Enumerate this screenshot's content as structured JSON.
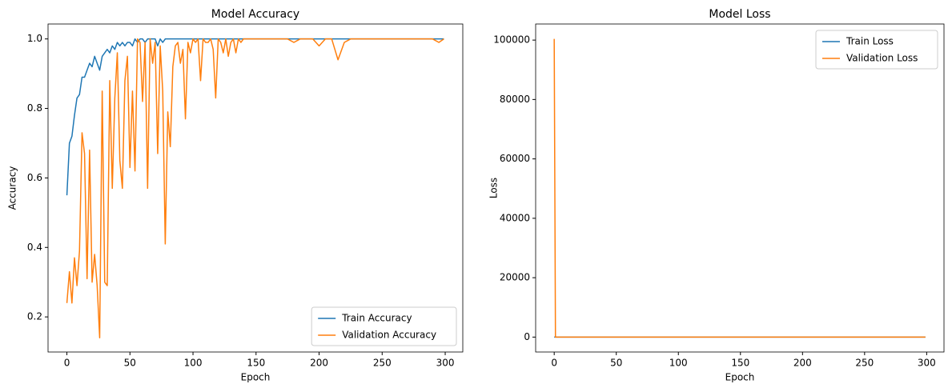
{
  "chart_data": [
    {
      "type": "line",
      "title": "Model Accuracy",
      "x_label": "Epoch",
      "y_label": "Accuracy",
      "x": [
        0,
        2,
        4,
        6,
        8,
        10,
        12,
        14,
        16,
        18,
        20,
        22,
        24,
        26,
        28,
        30,
        32,
        34,
        36,
        38,
        40,
        42,
        44,
        46,
        48,
        50,
        52,
        54,
        56,
        58,
        60,
        62,
        64,
        66,
        68,
        70,
        72,
        74,
        76,
        78,
        80,
        82,
        84,
        86,
        88,
        90,
        92,
        94,
        96,
        98,
        100,
        102,
        104,
        106,
        108,
        110,
        112,
        114,
        116,
        118,
        120,
        122,
        124,
        126,
        128,
        130,
        132,
        134,
        136,
        138,
        140,
        142,
        144,
        146,
        148,
        150,
        155,
        160,
        165,
        170,
        175,
        180,
        185,
        190,
        195,
        200,
        205,
        210,
        215,
        220,
        225,
        230,
        235,
        240,
        245,
        250,
        255,
        260,
        265,
        270,
        275,
        280,
        285,
        290,
        295,
        299
      ],
      "series": [
        {
          "name": "Train Accuracy",
          "color": "#1f77b4",
          "values": [
            0.55,
            0.7,
            0.72,
            0.78,
            0.83,
            0.84,
            0.89,
            0.89,
            0.91,
            0.93,
            0.92,
            0.95,
            0.93,
            0.91,
            0.95,
            0.96,
            0.97,
            0.96,
            0.98,
            0.97,
            0.99,
            0.98,
            0.99,
            0.98,
            0.99,
            0.99,
            0.98,
            1.0,
            0.99,
            1.0,
            1.0,
            0.99,
            1.0,
            1.0,
            1.0,
            1.0,
            0.98,
            1.0,
            0.99,
            1.0,
            1.0,
            1.0,
            1.0,
            1.0,
            1.0,
            1.0,
            1.0,
            1.0,
            1.0,
            1.0,
            1.0,
            1.0,
            1.0,
            1.0,
            1.0,
            1.0,
            1.0,
            1.0,
            1.0,
            1.0,
            1.0,
            1.0,
            1.0,
            1.0,
            1.0,
            1.0,
            1.0,
            1.0,
            1.0,
            1.0,
            1.0,
            1.0,
            1.0,
            1.0,
            1.0,
            1.0,
            1.0,
            1.0,
            1.0,
            1.0,
            1.0,
            1.0,
            1.0,
            1.0,
            1.0,
            1.0,
            1.0,
            1.0,
            1.0,
            1.0,
            1.0,
            1.0,
            1.0,
            1.0,
            1.0,
            1.0,
            1.0,
            1.0,
            1.0,
            1.0,
            1.0,
            1.0,
            1.0,
            1.0,
            1.0,
            1.0
          ]
        },
        {
          "name": "Validation Accuracy",
          "color": "#ff7f0e",
          "values": [
            0.24,
            0.33,
            0.24,
            0.37,
            0.29,
            0.39,
            0.73,
            0.67,
            0.31,
            0.68,
            0.3,
            0.38,
            0.29,
            0.14,
            0.85,
            0.3,
            0.29,
            0.88,
            0.57,
            0.83,
            0.96,
            0.65,
            0.57,
            0.88,
            0.95,
            0.63,
            0.85,
            0.62,
            1.0,
            0.99,
            0.82,
            0.99,
            0.57,
            1.0,
            0.93,
            0.99,
            0.67,
            0.98,
            0.85,
            0.41,
            0.79,
            0.69,
            0.92,
            0.98,
            0.99,
            0.93,
            0.97,
            0.77,
            0.99,
            0.96,
            1.0,
            0.99,
            1.0,
            0.88,
            1.0,
            0.99,
            0.99,
            1.0,
            0.97,
            0.83,
            1.0,
            0.99,
            0.96,
            1.0,
            0.95,
            0.99,
            1.0,
            0.96,
            1.0,
            0.99,
            1.0,
            1.0,
            1.0,
            1.0,
            1.0,
            1.0,
            1.0,
            1.0,
            1.0,
            1.0,
            1.0,
            0.99,
            1.0,
            1.0,
            1.0,
            0.98,
            1.0,
            1.0,
            0.94,
            0.99,
            1.0,
            1.0,
            1.0,
            1.0,
            1.0,
            1.0,
            1.0,
            1.0,
            1.0,
            1.0,
            1.0,
            1.0,
            1.0,
            1.0,
            0.99,
            1.0
          ]
        }
      ],
      "xlim": [
        -14.95,
        313.95
      ],
      "ylim": [
        0.099,
        1.043
      ],
      "xticks": [
        0,
        50,
        100,
        150,
        200,
        250,
        300
      ],
      "yticks": [
        0.2,
        0.4,
        0.6,
        0.8,
        {
          "value": 1,
          "label": "1.0"
        }
      ],
      "legend": "lower right"
    },
    {
      "type": "line",
      "title": "Model Loss",
      "x_label": "Epoch",
      "y_label": "Loss",
      "x": [
        0,
        1,
        2,
        5,
        10,
        20,
        50,
        100,
        150,
        200,
        250,
        299
      ],
      "series": [
        {
          "name": "Train Loss",
          "color": "#1f77b4",
          "values": [
            0.9,
            0.6,
            0.5,
            0.4,
            0.3,
            0.2,
            0.05,
            0.01,
            0.01,
            0.01,
            0.01,
            0.01
          ]
        },
        {
          "name": "Validation Loss",
          "color": "#ff7f0e",
          "values": [
            100400,
            2,
            1.5,
            1.2,
            1.5,
            2,
            0.5,
            0.1,
            0.01,
            0.05,
            0.02,
            0.01
          ]
        }
      ],
      "xlim": [
        -14.95,
        313.95
      ],
      "ylim": [
        -5020,
        105420
      ],
      "xticks": [
        0,
        50,
        100,
        150,
        200,
        250,
        300
      ],
      "yticks": [
        0,
        20000,
        40000,
        60000,
        80000,
        100000
      ],
      "legend": "upper right"
    }
  ]
}
